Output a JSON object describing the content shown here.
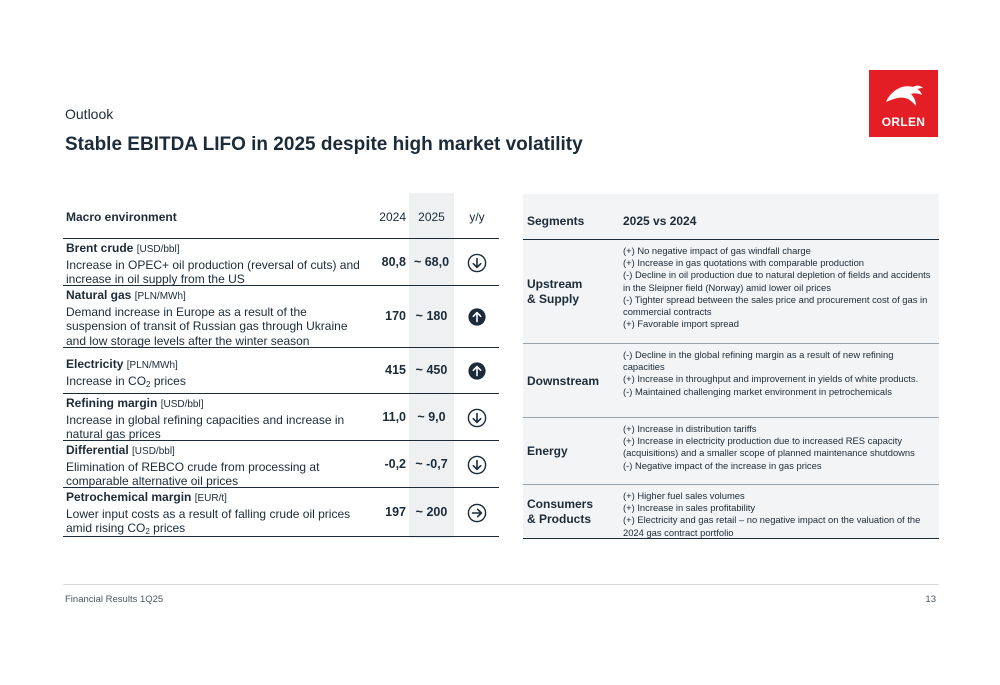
{
  "header": {
    "section": "Outlook",
    "title": "Stable EBITDA LIFO in 2025 despite high market volatility"
  },
  "logo": {
    "text": "ORLEN",
    "color": "#e31e24"
  },
  "macro": {
    "headers": {
      "title": "Macro environment",
      "y2024": "2024",
      "y2025": "2025",
      "yy": "y/y"
    },
    "rows": [
      {
        "name": "Brent crude",
        "unit": "[USD/bbl]",
        "desc": "Increase in OPEC+ oil production (reversal of cuts) and increase in oil supply from the US",
        "v2024": "80,8",
        "v2025": "~ 68,0",
        "trend": "down"
      },
      {
        "name": "Natural gas",
        "unit": "[PLN/MWh]",
        "desc": "Demand increase in Europe as a result of the suspension of transit of Russian gas through Ukraine and low storage levels after the winter season",
        "v2024": "170",
        "v2025": "~ 180",
        "trend": "up"
      },
      {
        "name": "Electricity",
        "unit": "[PLN/MWh]",
        "desc_pre": "Increase in CO",
        "desc_sub": "2",
        "desc_post": " prices",
        "v2024": "415",
        "v2025": "~ 450",
        "trend": "up"
      },
      {
        "name": "Refining margin",
        "unit": "[USD/bbl]",
        "desc": "Increase in global refining capacities and increase in natural gas prices",
        "v2024": "11,0",
        "v2025": "~ 9,0",
        "trend": "down"
      },
      {
        "name": "Differential",
        "unit": "[USD/bbl]",
        "desc": "Elimination of REBCO crude from processing at comparable alternative oil prices",
        "v2024": "-0,2",
        "v2025": "~ -0,7",
        "trend": "down"
      },
      {
        "name": "Petrochemical margin",
        "unit": "[EUR/t]",
        "desc_pre": "Lower input costs as a result of falling crude oil prices amid rising CO",
        "desc_sub": "2",
        "desc_post": " prices",
        "v2024": "197",
        "v2025": "~ 200",
        "trend": "flat"
      }
    ]
  },
  "segments": {
    "headers": {
      "name": "Segments",
      "comparison": "2025 vs 2024"
    },
    "rows": [
      {
        "name_line1": "Upstream",
        "name_line2": "& Supply",
        "items": [
          "(+) No negative impact of gas windfall charge",
          "(+) Increase in gas quotations with comparable production",
          "(-) Decline in oil production due to natural depletion of fields and accidents in the Sleipner field (Norway) amid lower oil prices",
          "(-) Tighter spread between the sales price and procurement cost of gas in commercial contracts",
          "(+) Favorable import spread"
        ]
      },
      {
        "name_line1": "Downstream",
        "name_line2": "",
        "items": [
          "(-) Decline in the global refining margin as a result of new refining capacities",
          "(+) Increase in throughput and improvement in yields of white products.",
          "(-) Maintained challenging market environment in petrochemicals"
        ]
      },
      {
        "name_line1": "Energy",
        "name_line2": "",
        "items": [
          "(+) Increase in distribution tariffs",
          "(+) Increase in electricity production due to increased RES capacity (acquisitions) and a smaller scope of planned maintenance shutdowns",
          "(-) Negative impact of the increase in gas prices"
        ]
      },
      {
        "name_line1": "Consumers",
        "name_line2": "& Products",
        "items": [
          "(+) Higher fuel sales volumes",
          "(+) Increase in sales profitability",
          "(+) Electricity and gas retail – no negative impact on the valuation of the 2024 gas contract portfolio"
        ]
      }
    ]
  },
  "footer": {
    "left": "Financial Results 1Q25",
    "page": "13"
  }
}
